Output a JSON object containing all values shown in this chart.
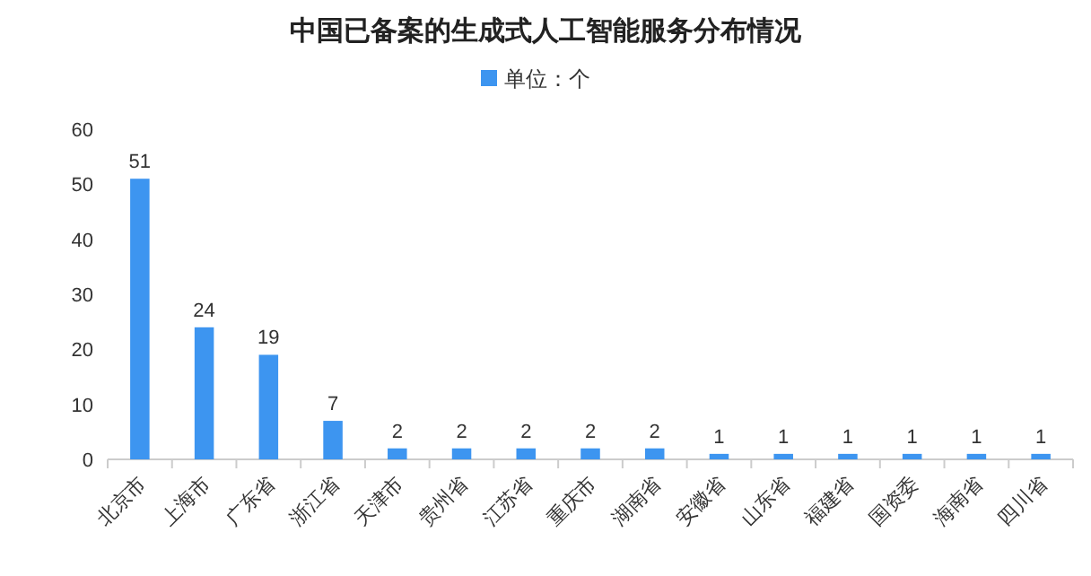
{
  "chart_data": {
    "type": "bar",
    "title": "中国已备案的生成式人工智能服务分布情况",
    "categories": [
      "北京市",
      "上海市",
      "广东省",
      "浙江省",
      "天津市",
      "贵州省",
      "江苏省",
      "重庆市",
      "湖南省",
      "安徽省",
      "山东省",
      "福建省",
      "国资委",
      "海南省",
      "四川省"
    ],
    "series": [
      {
        "name": "单位：个",
        "color": "#3d95f0",
        "values": [
          51,
          24,
          19,
          7,
          2,
          2,
          2,
          2,
          2,
          1,
          1,
          1,
          1,
          1,
          1
        ]
      }
    ],
    "ylim": [
      0,
      60
    ],
    "yticks": [
      0,
      10,
      20,
      30,
      40,
      50,
      60
    ],
    "data_labels": true,
    "legend": "top",
    "grid": false
  }
}
